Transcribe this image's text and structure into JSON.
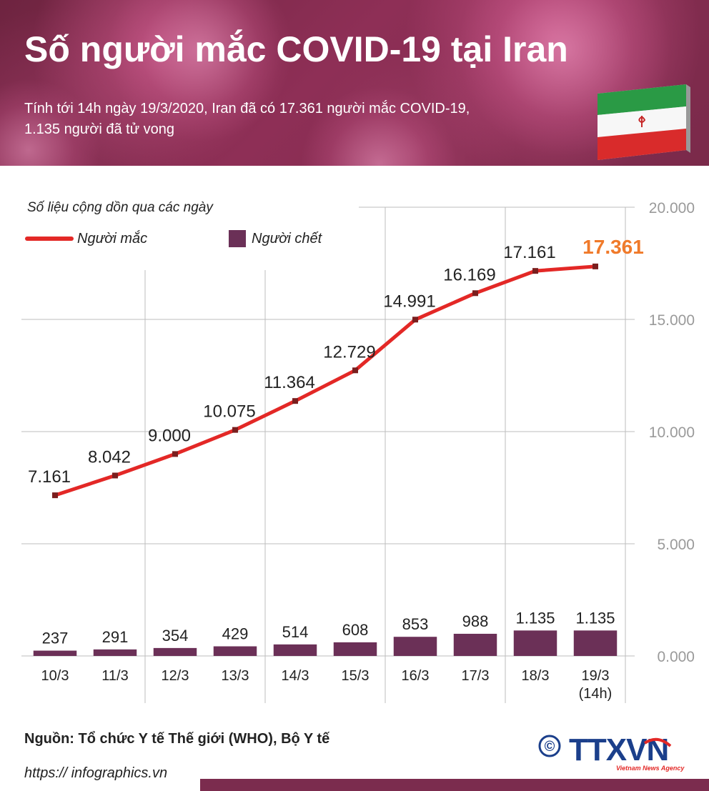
{
  "header": {
    "title": "Số người mắc COVID-19 tại Iran",
    "subtitle_line1": "Tính tới 14h ngày 19/3/2020, Iran đã có 17.361 người mắc COVID-19,",
    "subtitle_line2": "1.135 người đã  tử vong"
  },
  "footer": {
    "source": "Nguồn: Tổ chức Y tế Thế giới (WHO), Bộ Y tế",
    "website": "https:// infographics.vn",
    "logo_text": "TTXVN",
    "logo_sub": "Vietnam News Agency",
    "copyright_symbol": "©"
  },
  "colors": {
    "line": "#e32826",
    "bar": "#6b3057",
    "highlight": "#f07a2a",
    "header_bg": "#7a2a4a"
  },
  "chart_data": {
    "type": "line",
    "subtitle": "Số liệu cộng dồn qua các ngày",
    "categories": [
      "10/3",
      "11/3",
      "12/3",
      "13/3",
      "14/3",
      "15/3",
      "16/3",
      "17/3",
      "18/3",
      "19/3"
    ],
    "category_notes": [
      "",
      "",
      "",
      "",
      "",
      "",
      "",
      "",
      "",
      "(14h)"
    ],
    "series": [
      {
        "name": "Người mắc",
        "type": "line",
        "values": [
          7161,
          8042,
          9000,
          10075,
          11364,
          12729,
          14991,
          16169,
          17161,
          17361
        ],
        "labels": [
          "7.161",
          "8.042",
          "9.000",
          "10.075",
          "11.364",
          "12.729",
          "14.991",
          "16.169",
          "17.161",
          "17.361"
        ]
      },
      {
        "name": "Người chết",
        "type": "bar",
        "values": [
          237,
          291,
          354,
          429,
          514,
          608,
          853,
          988,
          1135,
          1135
        ],
        "labels": [
          "237",
          "291",
          "354",
          "429",
          "514",
          "608",
          "853",
          "988",
          "1.135",
          "1.135"
        ]
      }
    ],
    "ylim": [
      0,
      20000
    ],
    "yticks": [
      0,
      5000,
      10000,
      15000,
      20000
    ],
    "ytick_labels": [
      "0.000",
      "5.000",
      "10.000",
      "15.000",
      "20.000"
    ],
    "grid": true,
    "legend": "top-left",
    "y_axis_side": "right"
  }
}
